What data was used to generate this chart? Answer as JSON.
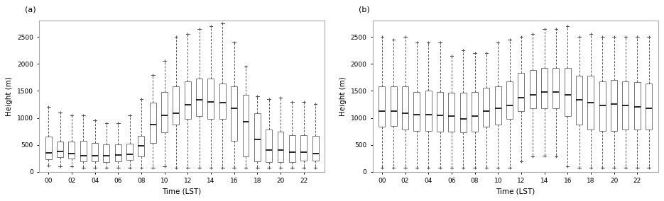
{
  "panel_a": {
    "label": "(a)",
    "xlabel": "Time (LST)",
    "ylabel": "Height (m)",
    "ylim": [
      0,
      2800
    ],
    "yticks": [
      0,
      500,
      1000,
      1500,
      2000,
      2500
    ],
    "box_data": [
      {
        "whislo": 120,
        "q1": 230,
        "med": 350,
        "q3": 650,
        "whishi": 1200
      },
      {
        "whislo": 100,
        "q1": 270,
        "med": 380,
        "q3": 560,
        "whishi": 1100
      },
      {
        "whislo": 100,
        "q1": 240,
        "med": 340,
        "q3": 560,
        "whishi": 1050
      },
      {
        "whislo": 80,
        "q1": 200,
        "med": 300,
        "q3": 570,
        "whishi": 1050
      },
      {
        "whislo": 80,
        "q1": 190,
        "med": 295,
        "q3": 540,
        "whishi": 950
      },
      {
        "whislo": 80,
        "q1": 185,
        "med": 295,
        "q3": 510,
        "whishi": 900
      },
      {
        "whislo": 80,
        "q1": 200,
        "med": 310,
        "q3": 510,
        "whishi": 900
      },
      {
        "whislo": 80,
        "q1": 215,
        "med": 330,
        "q3": 520,
        "whishi": 1050
      },
      {
        "whislo": 80,
        "q1": 290,
        "med": 480,
        "q3": 670,
        "whishi": 1350
      },
      {
        "whislo": 80,
        "q1": 530,
        "med": 870,
        "q3": 1280,
        "whishi": 1800
      },
      {
        "whislo": 100,
        "q1": 730,
        "med": 1040,
        "q3": 1480,
        "whishi": 2050
      },
      {
        "whislo": 80,
        "q1": 880,
        "med": 1090,
        "q3": 1580,
        "whishi": 2500
      },
      {
        "whislo": 80,
        "q1": 980,
        "med": 1240,
        "q3": 1680,
        "whishi": 2550
      },
      {
        "whislo": 80,
        "q1": 1030,
        "med": 1330,
        "q3": 1730,
        "whishi": 2650
      },
      {
        "whislo": 80,
        "q1": 980,
        "med": 1290,
        "q3": 1730,
        "whishi": 2700
      },
      {
        "whislo": 80,
        "q1": 980,
        "med": 1280,
        "q3": 1630,
        "whishi": 2750
      },
      {
        "whislo": 80,
        "q1": 580,
        "med": 1180,
        "q3": 1580,
        "whishi": 2400
      },
      {
        "whislo": 80,
        "q1": 280,
        "med": 930,
        "q3": 1430,
        "whishi": 1950
      },
      {
        "whislo": 80,
        "q1": 190,
        "med": 600,
        "q3": 1080,
        "whishi": 1400
      },
      {
        "whislo": 80,
        "q1": 185,
        "med": 400,
        "q3": 780,
        "whishi": 1350
      },
      {
        "whislo": 80,
        "q1": 185,
        "med": 410,
        "q3": 745,
        "whishi": 1380
      },
      {
        "whislo": 80,
        "q1": 185,
        "med": 370,
        "q3": 685,
        "whishi": 1300
      },
      {
        "whislo": 80,
        "q1": 205,
        "med": 370,
        "q3": 685,
        "whishi": 1300
      },
      {
        "whislo": 80,
        "q1": 205,
        "med": 340,
        "q3": 665,
        "whishi": 1250
      }
    ]
  },
  "panel_b": {
    "label": "(b)",
    "xlabel": "Time (LST)",
    "ylabel": "Height (m)",
    "ylim": [
      0,
      2800
    ],
    "yticks": [
      0,
      500,
      1000,
      1500,
      2000,
      2500
    ],
    "box_data": [
      {
        "whislo": 80,
        "q1": 830,
        "med": 1130,
        "q3": 1580,
        "whishi": 2500
      },
      {
        "whislo": 80,
        "q1": 850,
        "med": 1130,
        "q3": 1580,
        "whishi": 2450
      },
      {
        "whislo": 80,
        "q1": 780,
        "med": 1080,
        "q3": 1580,
        "whishi": 2500
      },
      {
        "whislo": 80,
        "q1": 760,
        "med": 1060,
        "q3": 1480,
        "whishi": 2400
      },
      {
        "whislo": 80,
        "q1": 760,
        "med": 1060,
        "q3": 1510,
        "whishi": 2400
      },
      {
        "whislo": 80,
        "q1": 740,
        "med": 1050,
        "q3": 1480,
        "whishi": 2400
      },
      {
        "whislo": 80,
        "q1": 740,
        "med": 1030,
        "q3": 1460,
        "whishi": 2150
      },
      {
        "whislo": 80,
        "q1": 730,
        "med": 980,
        "q3": 1460,
        "whishi": 2250
      },
      {
        "whislo": 80,
        "q1": 740,
        "med": 1030,
        "q3": 1480,
        "whishi": 2200
      },
      {
        "whislo": 80,
        "q1": 830,
        "med": 1130,
        "q3": 1560,
        "whishi": 2200
      },
      {
        "whislo": 80,
        "q1": 880,
        "med": 1180,
        "q3": 1580,
        "whishi": 2400
      },
      {
        "whislo": 80,
        "q1": 980,
        "med": 1230,
        "q3": 1680,
        "whishi": 2450
      },
      {
        "whislo": 200,
        "q1": 1130,
        "med": 1380,
        "q3": 1830,
        "whishi": 2500
      },
      {
        "whislo": 280,
        "q1": 1180,
        "med": 1430,
        "q3": 1880,
        "whishi": 2550
      },
      {
        "whislo": 300,
        "q1": 1180,
        "med": 1480,
        "q3": 1930,
        "whishi": 2650
      },
      {
        "whislo": 280,
        "q1": 1180,
        "med": 1480,
        "q3": 1930,
        "whishi": 2650
      },
      {
        "whislo": 100,
        "q1": 1030,
        "med": 1430,
        "q3": 1930,
        "whishi": 2700
      },
      {
        "whislo": 80,
        "q1": 880,
        "med": 1330,
        "q3": 1780,
        "whishi": 2500
      },
      {
        "whislo": 80,
        "q1": 780,
        "med": 1280,
        "q3": 1780,
        "whishi": 2550
      },
      {
        "whislo": 80,
        "q1": 760,
        "med": 1230,
        "q3": 1680,
        "whishi": 2500
      },
      {
        "whislo": 80,
        "q1": 760,
        "med": 1260,
        "q3": 1700,
        "whishi": 2500
      },
      {
        "whislo": 80,
        "q1": 780,
        "med": 1230,
        "q3": 1680,
        "whishi": 2500
      },
      {
        "whislo": 80,
        "q1": 780,
        "med": 1210,
        "q3": 1660,
        "whishi": 2500
      },
      {
        "whislo": 80,
        "q1": 780,
        "med": 1180,
        "q3": 1630,
        "whishi": 2500
      }
    ]
  },
  "bg_color": "white",
  "box_color": "white",
  "median_color": "black",
  "whisker_color": "#555555",
  "box_edge_color": "#777777",
  "flier_color": "#555555",
  "xtick_labels": [
    "00",
    "02",
    "04",
    "06",
    "08",
    "10",
    "12",
    "14",
    "16",
    "18",
    "20",
    "22"
  ]
}
